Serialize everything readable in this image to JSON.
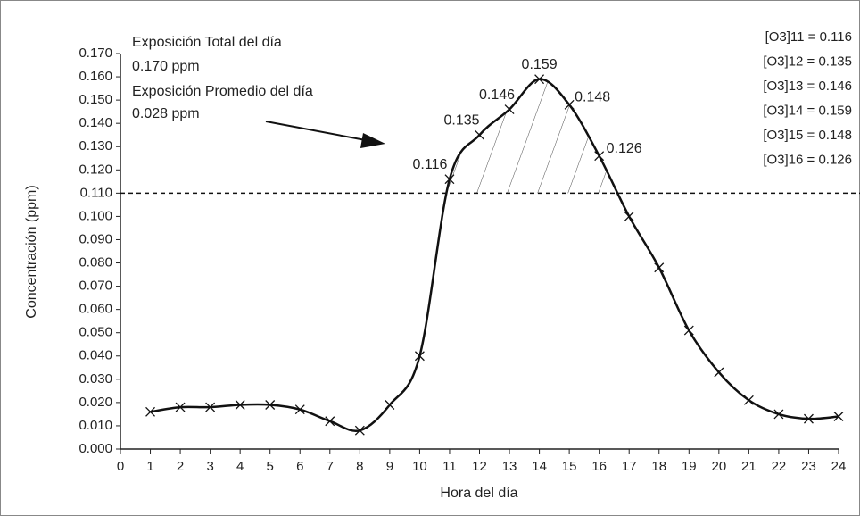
{
  "chart_data": {
    "type": "line",
    "x_label": "Hora del día",
    "y_label": "Concentración  (ppm)",
    "x": [
      1,
      2,
      3,
      4,
      5,
      6,
      7,
      8,
      9,
      10,
      11,
      12,
      13,
      14,
      15,
      16,
      17,
      18,
      19,
      20,
      21,
      22,
      23,
      24
    ],
    "values": [
      0.016,
      0.018,
      0.018,
      0.019,
      0.019,
      0.017,
      0.012,
      0.008,
      0.019,
      0.04,
      0.116,
      0.135,
      0.146,
      0.159,
      0.148,
      0.126,
      0.1,
      0.078,
      0.051,
      0.033,
      0.021,
      0.015,
      0.013,
      0.014
    ],
    "value_labels": [
      null,
      null,
      null,
      null,
      null,
      null,
      null,
      null,
      null,
      null,
      "0.116",
      "0.135",
      "0.146",
      "0.159",
      "0.148",
      "0.126",
      null,
      null,
      null,
      null,
      null,
      null,
      null,
      null
    ],
    "color": "#111111",
    "threshold": 0.11,
    "xlim": [
      0,
      24
    ],
    "xticks": [
      0,
      1,
      2,
      3,
      4,
      5,
      6,
      7,
      8,
      9,
      10,
      11,
      12,
      13,
      14,
      15,
      16,
      17,
      18,
      19,
      20,
      21,
      22,
      23,
      24
    ],
    "ylim": [
      0,
      0.17
    ],
    "yticks": [
      {
        "value": 0,
        "label": "0.000"
      },
      {
        "value": 0.01,
        "label": "0.010"
      },
      {
        "value": 0.02,
        "label": "0.020"
      },
      {
        "value": 0.03,
        "label": "0.030"
      },
      {
        "value": 0.04,
        "label": "0.040"
      },
      {
        "value": 0.05,
        "label": "0.050"
      },
      {
        "value": 0.06,
        "label": "0.060"
      },
      {
        "value": 0.07,
        "label": "0.070"
      },
      {
        "value": 0.08,
        "label": "0.080"
      },
      {
        "value": 0.09,
        "label": "0.090"
      },
      {
        "value": 0.1,
        "label": "0.100"
      },
      {
        "value": 0.11,
        "label": "0.110"
      },
      {
        "value": 0.12,
        "label": "0.120"
      },
      {
        "value": 0.13,
        "label": "0.130"
      },
      {
        "value": 0.14,
        "label": "0.140"
      },
      {
        "value": 0.15,
        "label": "0.150"
      },
      {
        "value": 0.16,
        "label": "0.160"
      },
      {
        "value": 0.17,
        "label": "0.170"
      }
    ],
    "annotations": [
      "Exposición Total del día",
      "0.170 ppm",
      "Exposición Promedio del día",
      "0.028 ppm"
    ],
    "legend_lines": [
      "[O3]11 = 0.116",
      "[O3]12 = 0.135",
      "[O3]13 = 0.146",
      "[O3]14 = 0.159",
      "[O3]15 = 0.148",
      "[O3]16 = 0.126"
    ]
  }
}
